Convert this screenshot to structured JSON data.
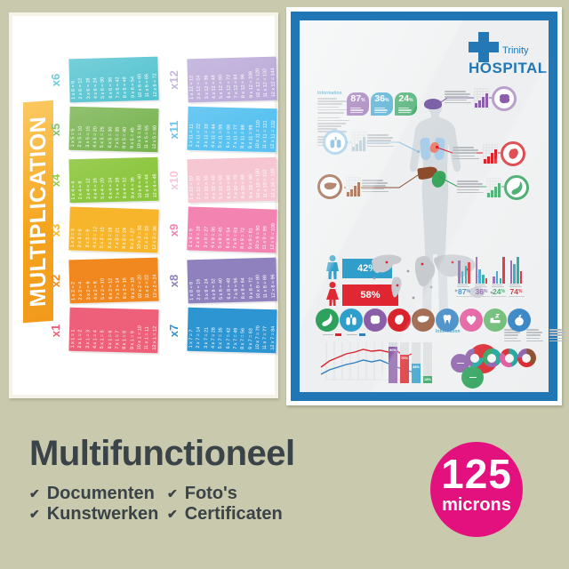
{
  "left_poster": {
    "title": "MULTIPLICATION",
    "tables": [
      {
        "label": "x6",
        "color": "#2FB6C6",
        "facts": [
          "1 x 6 = 6",
          "2 x 6 = 12",
          "3 x 6 = 18",
          "4 x 6 = 24",
          "5 x 6 = 30",
          "6 x 6 = 36",
          "7 x 6 = 42",
          "8 x 6 = 48",
          "9 x 6 = 54",
          "10 x 6 = 60",
          "11 x 6 = 66",
          "12 x 6 = 72"
        ]
      },
      {
        "label": "x5",
        "color": "#6FAE44",
        "facts": [
          "1 x 5 = 5",
          "2 x 5 = 10",
          "3 x 5 = 15",
          "4 x 5 = 20",
          "5 x 5 = 25",
          "6 x 5 = 30",
          "7 x 5 = 35",
          "8 x 5 = 40",
          "9 x 5 = 45",
          "10 x 5 = 50",
          "11 x 5 = 55",
          "12 x 5 = 60"
        ]
      },
      {
        "label": "x4",
        "color": "#8CC63E",
        "facts": [
          "1 x 4 = 4",
          "2 x 4 = 8",
          "3 x 4 = 12",
          "4 x 4 = 16",
          "5 x 4 = 20",
          "6 x 4 = 24",
          "7 x 4 = 28",
          "8 x 4 = 32",
          "9 x 4 = 36",
          "10 x 4 = 40",
          "11 x 4 = 44",
          "12 x 4 = 48"
        ]
      },
      {
        "label": "x3",
        "color": "#F7B52C",
        "facts": [
          "1 x 3 = 3",
          "2 x 3 = 6",
          "3 x 3 = 9",
          "4 x 3 = 12",
          "5 x 3 = 15",
          "6 x 3 = 18",
          "7 x 3 = 21",
          "8 x 3 = 24",
          "9 x 3 = 27",
          "10 x 3 = 30",
          "11 x 3 = 33",
          "12 x 3 = 36"
        ]
      },
      {
        "label": "x2",
        "color": "#F1871F",
        "facts": [
          "1 x 2 = 2",
          "2 x 2 = 4",
          "3 x 2 = 6",
          "4 x 2 = 8",
          "5 x 2 = 10",
          "6 x 2 = 12",
          "7 x 2 = 14",
          "8 x 2 = 16",
          "9 x 2 = 18",
          "10 x 2 = 20",
          "11 x 2 = 22",
          "12 x 2 = 24"
        ]
      },
      {
        "label": "x1",
        "color": "#EE6079",
        "facts": [
          "1 x 1 = 1",
          "2 x 1 = 2",
          "3 x 1 = 3",
          "4 x 1 = 4",
          "5 x 1 = 5",
          "6 x 1 = 6",
          "7 x 1 = 7",
          "8 x 1 = 8",
          "9 x 1 = 9",
          "10 x 1 = 10",
          "11 x 1 = 11",
          "12 x 1 = 12"
        ]
      },
      {
        "label": "x12",
        "color": "#B7A6D6",
        "facts": [
          "1 x 12 = 12",
          "2 x 12 = 24",
          "3 x 12 = 36",
          "4 x 12 = 48",
          "5 x 12 = 60",
          "6 x 12 = 72",
          "7 x 12 = 84",
          "8 x 12 = 96",
          "9 x 12 = 108",
          "10 x 12 = 120",
          "11 x 12 = 132",
          "12 x 12 = 144"
        ]
      },
      {
        "label": "x11",
        "color": "#59C2F0",
        "facts": [
          "1 x 11 = 11",
          "2 x 11 = 22",
          "3 x 11 = 33",
          "4 x 11 = 44",
          "5 x 11 = 55",
          "6 x 11 = 66",
          "7 x 11 = 77",
          "8 x 11 = 88",
          "9 x 11 = 99",
          "10 x 11 = 110",
          "11 x 11 = 121",
          "12 x 11 = 132"
        ]
      },
      {
        "label": "x10",
        "color": "#F6C7D2",
        "facts": [
          "1 x 10 = 10",
          "2 x 10 = 20",
          "3 x 10 = 30",
          "4 x 10 = 40",
          "5 x 10 = 50",
          "6 x 10 = 60",
          "7 x 10 = 70",
          "8 x 10 = 80",
          "9 x 10 = 90",
          "10 x 10 = 100",
          "11 x 10 = 110",
          "12 x 10 = 120"
        ]
      },
      {
        "label": "x9",
        "color": "#F383B0",
        "facts": [
          "1 x 9 = 9",
          "2 x 9 = 18",
          "3 x 9 = 27",
          "4 x 9 = 36",
          "5 x 9 = 45",
          "6 x 9 = 54",
          "7 x 9 = 63",
          "8 x 9 = 72",
          "9 x 9 = 81",
          "10 x 9 = 90",
          "11 x 9 = 99",
          "12 x 9 = 108"
        ]
      },
      {
        "label": "x8",
        "color": "#8F80BE",
        "facts": [
          "1 x 8 = 8",
          "2 x 8 = 16",
          "3 x 8 = 24",
          "4 x 8 = 32",
          "5 x 8 = 40",
          "6 x 8 = 48",
          "7 x 8 = 56",
          "8 x 8 = 64",
          "9 x 8 = 72",
          "10 x 8 = 80",
          "11 x 8 = 88",
          "12 x 8 = 96"
        ]
      },
      {
        "label": "x7",
        "color": "#2E95D3",
        "facts": [
          "1 x 7 = 7",
          "2 x 7 = 14",
          "3 x 7 = 21",
          "4 x 7 = 28",
          "5 x 7 = 35",
          "6 x 7 = 42",
          "7 x 7 = 49",
          "8 x 7 = 56",
          "9 x 7 = 63",
          "10 x 7 = 70",
          "11 x 7 = 77",
          "12 x 7 = 84"
        ]
      }
    ]
  },
  "right_poster": {
    "logo": {
      "brand": "Trinity",
      "word": "HOSPITAL"
    },
    "info_heading": "Information",
    "info_heading2": "Information",
    "top_badges": [
      {
        "value": "87",
        "unit": "%",
        "color": "#8A5DA8"
      },
      {
        "value": "36",
        "unit": "%",
        "color": "#2D9DC9"
      },
      {
        "value": "24",
        "unit": "%",
        "color": "#2BA05A"
      }
    ],
    "gender": {
      "male": "42%",
      "female": "58%",
      "male_color": "#2D9DC9",
      "female_color": "#E02430"
    },
    "stat_groups": [
      {
        "label": "87",
        "unit": "%",
        "color": "#2D7FC1",
        "bars": [
          26,
          14,
          20,
          24
        ]
      },
      {
        "label": "36",
        "unit": "%",
        "color": "#8A5DA8",
        "bars": [
          30,
          16,
          10,
          6
        ]
      },
      {
        "label": "24",
        "unit": "%",
        "color": "#2BA05A",
        "bars": [
          8,
          14,
          6,
          30
        ]
      },
      {
        "label": "74",
        "unit": "%",
        "color": "#D8232A",
        "bars": [
          26,
          22,
          30,
          14
        ]
      }
    ],
    "stat_bar_palette": [
      "#8A5DA8",
      "#2D9DC9",
      "#18A39B",
      "#D8232A"
    ],
    "organ_icons": [
      {
        "name": "stomach",
        "color": "#2BA05A"
      },
      {
        "name": "lungs",
        "color": "#2D9DC9"
      },
      {
        "name": "brain",
        "color": "#8A5DA8"
      },
      {
        "name": "heart-organ",
        "color": "#D8232A"
      },
      {
        "name": "liver",
        "color": "#8B4A2A"
      },
      {
        "name": "tooth",
        "color": "#2D7FC1"
      },
      {
        "name": "heart",
        "color": "#E0549A"
      },
      {
        "name": "sleep",
        "color": "#66B86E"
      },
      {
        "name": "apple",
        "color": "#2D7FC1"
      }
    ],
    "vertical_bars": {
      "values": [
        90,
        70,
        48,
        18
      ],
      "colors": [
        "#8A5DA8",
        "#D8232A",
        "#2D9DC9",
        "#2BA05A"
      ]
    },
    "line_chart": {
      "series": [
        {
          "name": "series-red",
          "color": "#D8232A",
          "points": [
            30,
            23,
            19,
            15,
            13,
            10,
            12,
            11,
            13,
            12,
            18,
            14
          ]
        },
        {
          "name": "series-blue",
          "color": "#2D7FC1",
          "points": [
            38,
            33,
            30,
            27,
            25,
            22,
            24,
            22,
            26,
            30,
            33,
            36
          ]
        }
      ]
    },
    "bubbles": [
      {
        "color": "#8A5DA8",
        "size": 21
      },
      {
        "color": "#D8232A",
        "size": 33
      },
      {
        "color": "#2BA05A",
        "size": 25
      }
    ],
    "donuts": [
      {
        "segments": [
          [
            "#D8232A",
            25
          ],
          [
            "#18A39B",
            30
          ],
          [
            "#8A5DA8",
            45
          ]
        ]
      },
      {
        "segments": [
          [
            "#18A39B",
            40
          ],
          [
            "#8A5DA8",
            20
          ],
          [
            "#2BA05A",
            40
          ]
        ]
      },
      {
        "segments": [
          [
            "#18A39B",
            45
          ],
          [
            "#E0549A",
            40
          ],
          [
            "#D8232A",
            15
          ]
        ]
      },
      {
        "segments": [
          [
            "#8B4A2A",
            40
          ],
          [
            "#D8232A",
            35
          ],
          [
            "#8A5DA8",
            25
          ]
        ]
      }
    ]
  },
  "bottom": {
    "title": "Multifunctioneel",
    "features": [
      "Documenten",
      "Kunstwerken",
      "Foto's",
      "Certificaten"
    ],
    "check_glyph": "✔",
    "badge": {
      "value": "125",
      "unit": "microns",
      "color": "#E3117E"
    }
  }
}
